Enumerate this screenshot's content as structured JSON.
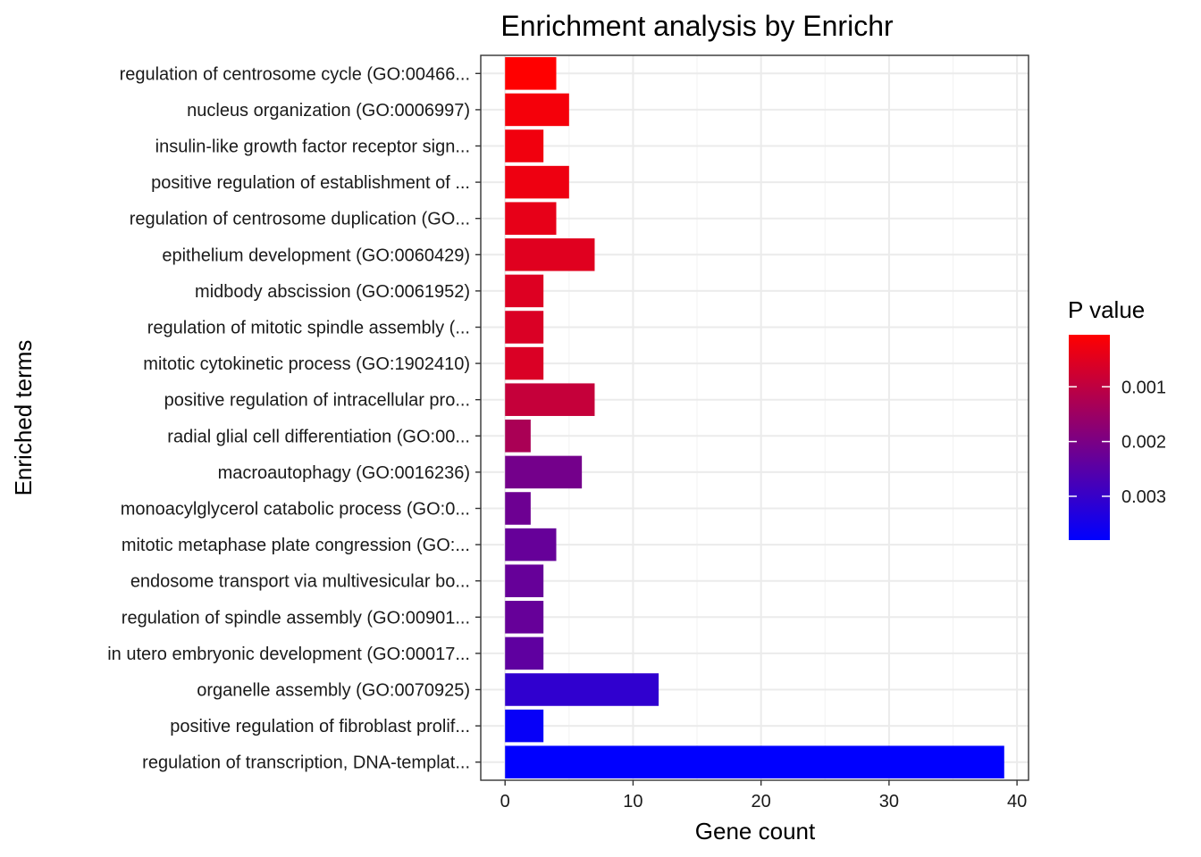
{
  "chart_data": {
    "type": "bar",
    "orientation": "horizontal",
    "title": "Enrichment analysis by Enrichr",
    "xlabel": "Gene count",
    "ylabel": "Enriched terms",
    "xlim": [
      -1.9,
      40.9
    ],
    "x_ticks": [
      0,
      10,
      20,
      30,
      40
    ],
    "grid": true,
    "legend_placement": "right",
    "legend": {
      "title": "P value",
      "labels": [
        "0.001",
        "0.002",
        "0.003"
      ],
      "values": [
        0.001,
        0.002,
        0.003
      ],
      "range": [
        5e-05,
        0.0038
      ],
      "color_low": "#ff0000",
      "color_high": "#0000ff"
    },
    "categories": [
      "regulation of centrosome cycle (GO:00466...",
      "nucleus organization (GO:0006997)",
      "insulin-like growth factor receptor sign...",
      "positive regulation of establishment of ...",
      "regulation of centrosome duplication (GO...",
      "epithelium development (GO:0060429)",
      "midbody abscission (GO:0061952)",
      "regulation of mitotic spindle assembly (...",
      "mitotic cytokinetic process (GO:1902410)",
      "positive regulation of intracellular pro...",
      "radial glial cell differentiation (GO:00...",
      "macroautophagy (GO:0016236)",
      "monoacylglycerol catabolic process (GO:0...",
      "mitotic metaphase plate congression (GO:...",
      "endosome transport via multivesicular bo...",
      "regulation of spindle assembly (GO:00901...",
      "in utero embryonic development (GO:00017...",
      "organelle assembly (GO:0070925)",
      "positive regulation of fibroblast prolif...",
      "regulation of transcription, DNA-templat..."
    ],
    "values": [
      4,
      5,
      3,
      5,
      4,
      7,
      3,
      3,
      3,
      7,
      2,
      6,
      2,
      4,
      3,
      3,
      3,
      12,
      3,
      39
    ],
    "p_values": [
      5e-05,
      0.0002,
      0.00025,
      0.0003,
      0.0004,
      0.0005,
      0.00055,
      0.0006,
      0.0006,
      0.0009,
      0.0013,
      0.0021,
      0.0022,
      0.0023,
      0.0023,
      0.0023,
      0.0024,
      0.0031,
      0.0037,
      0.0038
    ]
  }
}
